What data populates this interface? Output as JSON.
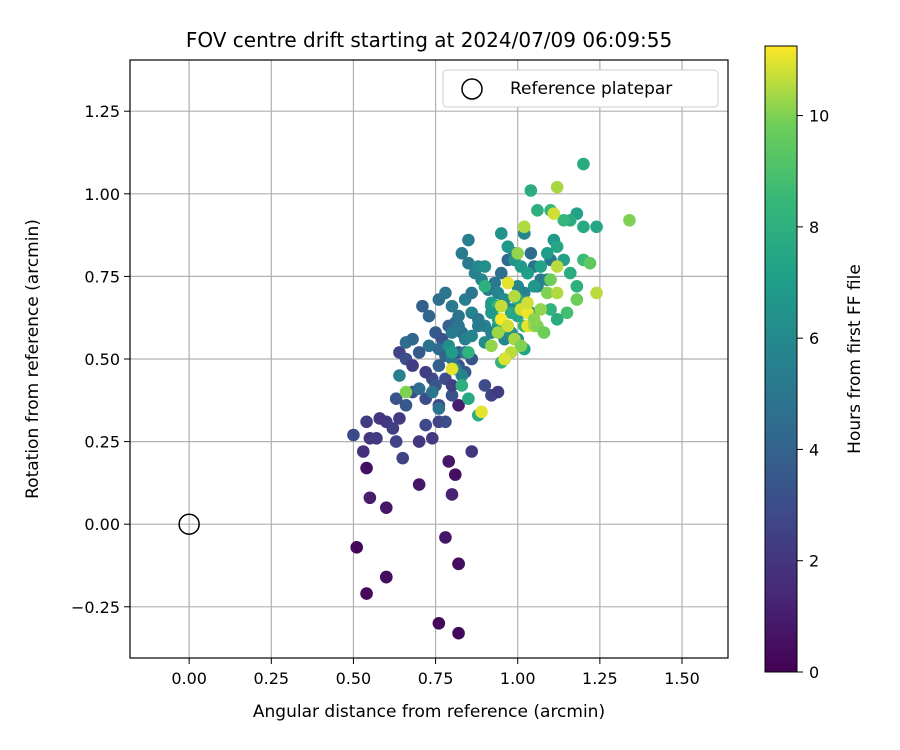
{
  "chart_data": {
    "type": "scatter",
    "title": "FOV centre drift starting at 2024/07/09 06:09:55",
    "xlabel": "Angular distance from reference (arcmin)",
    "ylabel": "Rotation from reference (arcmin)",
    "xlim": [
      -0.18,
      1.64
    ],
    "ylim": [
      -0.405,
      1.405
    ],
    "xticks": [
      0.0,
      0.25,
      0.5,
      0.75,
      1.0,
      1.25,
      1.5
    ],
    "xtick_labels": [
      "0.00",
      "0.25",
      "0.50",
      "0.75",
      "1.00",
      "1.25",
      "1.50"
    ],
    "yticks": [
      -0.25,
      0.0,
      0.25,
      0.5,
      0.75,
      1.0,
      1.25
    ],
    "ytick_labels": [
      "−0.25",
      "0.00",
      "0.25",
      "0.50",
      "0.75",
      "1.00",
      "1.25"
    ],
    "grid": true,
    "colormap": "viridis",
    "colorbar": {
      "label": "Hours from first FF file",
      "range": [
        0,
        11.25
      ],
      "ticks": [
        0,
        2,
        4,
        6,
        8,
        10
      ],
      "tick_labels": [
        "0",
        "2",
        "4",
        "6",
        "8",
        "10"
      ]
    },
    "reference_point": {
      "x": 0.0,
      "y": 0.0
    },
    "legend": {
      "position": "top-right",
      "entries": [
        "Reference platepar"
      ]
    },
    "points": [
      [
        0.51,
        -0.07,
        0.2
      ],
      [
        0.54,
        -0.21,
        0.3
      ],
      [
        0.6,
        -0.16,
        0.3
      ],
      [
        0.6,
        -0.16,
        0.5
      ],
      [
        0.76,
        -0.3,
        0.2
      ],
      [
        0.82,
        -0.33,
        0.3
      ],
      [
        0.82,
        -0.12,
        0.3
      ],
      [
        0.82,
        -0.12,
        0.5
      ],
      [
        0.78,
        -0.04,
        0.8
      ],
      [
        0.55,
        0.08,
        1.0
      ],
      [
        0.6,
        0.05,
        0.8
      ],
      [
        0.7,
        0.12,
        0.8
      ],
      [
        0.54,
        0.17,
        0.5
      ],
      [
        0.79,
        0.19,
        0.8
      ],
      [
        0.81,
        0.15,
        0.5
      ],
      [
        0.8,
        0.09,
        1.2
      ],
      [
        0.82,
        0.36,
        1.0
      ],
      [
        0.53,
        0.22,
        1.8
      ],
      [
        0.55,
        0.26,
        2.0
      ],
      [
        0.57,
        0.26,
        2.2
      ],
      [
        0.5,
        0.27,
        2.8
      ],
      [
        0.54,
        0.31,
        2.3
      ],
      [
        0.58,
        0.32,
        2.0
      ],
      [
        0.6,
        0.31,
        2.1
      ],
      [
        0.62,
        0.29,
        2.4
      ],
      [
        0.64,
        0.32,
        2.2
      ],
      [
        0.63,
        0.25,
        2.6
      ],
      [
        0.65,
        0.2,
        2.5
      ],
      [
        0.7,
        0.25,
        2.0
      ],
      [
        0.72,
        0.3,
        2.8
      ],
      [
        0.74,
        0.26,
        2.2
      ],
      [
        0.76,
        0.31,
        2.6
      ],
      [
        0.78,
        0.31,
        3.0
      ],
      [
        0.63,
        0.38,
        3.3
      ],
      [
        0.66,
        0.36,
        3.5
      ],
      [
        0.68,
        0.4,
        3.1
      ],
      [
        0.72,
        0.38,
        3.0
      ],
      [
        0.74,
        0.44,
        2.9
      ],
      [
        0.76,
        0.36,
        2.8
      ],
      [
        0.8,
        0.39,
        3.2
      ],
      [
        0.86,
        0.22,
        2.0
      ],
      [
        0.9,
        0.42,
        3.0
      ],
      [
        0.92,
        0.39,
        2.5
      ],
      [
        0.94,
        0.4,
        2.3
      ],
      [
        0.64,
        0.52,
        2.6
      ],
      [
        0.66,
        0.5,
        3.1
      ],
      [
        0.68,
        0.48,
        2.3
      ],
      [
        0.7,
        0.52,
        3.6
      ],
      [
        0.72,
        0.46,
        2.4
      ],
      [
        0.75,
        0.42,
        3.4
      ],
      [
        0.76,
        0.48,
        3.8
      ],
      [
        0.78,
        0.44,
        3.0
      ],
      [
        0.8,
        0.42,
        2.4
      ],
      [
        0.82,
        0.48,
        3.5
      ],
      [
        0.84,
        0.46,
        3.6
      ],
      [
        0.86,
        0.5,
        3.3
      ],
      [
        0.71,
        0.66,
        3.8
      ],
      [
        0.73,
        0.63,
        4.1
      ],
      [
        0.75,
        0.58,
        3.6
      ],
      [
        0.77,
        0.56,
        3.3
      ],
      [
        0.79,
        0.6,
        3.9
      ],
      [
        0.81,
        0.61,
        4.3
      ],
      [
        0.83,
        0.58,
        4.6
      ],
      [
        0.66,
        0.55,
        4.5
      ],
      [
        0.68,
        0.56,
        4.2
      ],
      [
        0.73,
        0.54,
        4.8
      ],
      [
        0.76,
        0.53,
        4.4
      ],
      [
        0.78,
        0.51,
        4.0
      ],
      [
        0.8,
        0.5,
        4.9
      ],
      [
        0.82,
        0.52,
        3.4
      ],
      [
        0.84,
        0.52,
        5.0
      ],
      [
        0.64,
        0.45,
        5.5
      ],
      [
        0.7,
        0.41,
        4.5
      ],
      [
        0.74,
        0.4,
        5.0
      ],
      [
        0.76,
        0.35,
        4.8
      ],
      [
        0.76,
        0.68,
        4.6
      ],
      [
        0.78,
        0.7,
        5.0
      ],
      [
        0.8,
        0.66,
        5.2
      ],
      [
        0.82,
        0.63,
        4.8
      ],
      [
        0.84,
        0.68,
        5.4
      ],
      [
        0.86,
        0.7,
        5.0
      ],
      [
        0.85,
        0.79,
        5.2
      ],
      [
        0.87,
        0.76,
        5.6
      ],
      [
        0.89,
        0.74,
        5.8
      ],
      [
        0.91,
        0.71,
        5.3
      ],
      [
        0.93,
        0.73,
        5.1
      ],
      [
        0.95,
        0.76,
        4.6
      ],
      [
        0.97,
        0.8,
        4.2
      ],
      [
        0.99,
        0.82,
        5.0
      ],
      [
        1.02,
        0.88,
        5.8
      ],
      [
        1.03,
        0.76,
        4.4
      ],
      [
        1.05,
        0.78,
        4.8
      ],
      [
        1.07,
        0.74,
        5.2
      ],
      [
        1.04,
        0.82,
        4.5
      ],
      [
        1.06,
        0.72,
        5.5
      ],
      [
        1.1,
        0.8,
        5.0
      ],
      [
        1.09,
        0.74,
        5.6
      ],
      [
        0.83,
        0.82,
        5.3
      ],
      [
        0.85,
        0.86,
        5.4
      ],
      [
        0.88,
        0.78,
        5.9
      ],
      [
        0.9,
        0.78,
        6.3
      ],
      [
        0.86,
        0.64,
        5.7
      ],
      [
        0.88,
        0.62,
        5.2
      ],
      [
        0.9,
        0.6,
        5.6
      ],
      [
        0.92,
        0.66,
        6.1
      ],
      [
        0.94,
        0.7,
        5.8
      ],
      [
        0.96,
        0.68,
        6.2
      ],
      [
        0.98,
        0.65,
        5.9
      ],
      [
        1.0,
        0.72,
        6.0
      ],
      [
        1.02,
        0.7,
        5.6
      ],
      [
        0.84,
        0.56,
        5.5
      ],
      [
        0.86,
        0.57,
        5.8
      ],
      [
        0.88,
        0.6,
        5.2
      ],
      [
        0.9,
        0.55,
        6.1
      ],
      [
        0.92,
        0.58,
        5.7
      ],
      [
        0.94,
        0.6,
        6.3
      ],
      [
        0.96,
        0.56,
        5.9
      ],
      [
        0.98,
        0.58,
        6.4
      ],
      [
        1.0,
        0.56,
        6.2
      ],
      [
        1.02,
        0.53,
        7.3
      ],
      [
        0.8,
        0.58,
        5.2
      ],
      [
        0.82,
        0.6,
        5.0
      ],
      [
        0.79,
        0.54,
        6.3
      ],
      [
        0.81,
        0.47,
        6.0
      ],
      [
        0.83,
        0.45,
        5.8
      ],
      [
        0.95,
        0.88,
        6.5
      ],
      [
        0.97,
        0.84,
        6.8
      ],
      [
        0.99,
        0.8,
        6.6
      ],
      [
        1.01,
        0.78,
        6.9
      ],
      [
        1.03,
        0.76,
        7.1
      ],
      [
        1.05,
        0.72,
        6.7
      ],
      [
        1.07,
        0.78,
        7.3
      ],
      [
        1.09,
        0.82,
        7.0
      ],
      [
        1.11,
        0.86,
        6.8
      ],
      [
        1.12,
        0.84,
        7.5
      ],
      [
        1.14,
        0.8,
        7.2
      ],
      [
        1.16,
        0.76,
        7.8
      ],
      [
        1.18,
        0.72,
        8.0
      ],
      [
        1.2,
        0.8,
        8.6
      ],
      [
        1.22,
        0.79,
        9.5
      ],
      [
        1.24,
        0.9,
        7.5
      ],
      [
        1.18,
        0.94,
        7.2
      ],
      [
        1.16,
        0.92,
        7.8
      ],
      [
        1.2,
        0.9,
        7.6
      ],
      [
        1.14,
        0.92,
        8.3
      ],
      [
        1.1,
        0.95,
        8.4
      ],
      [
        1.06,
        0.95,
        8.0
      ],
      [
        1.04,
        1.01,
        7.9
      ],
      [
        1.2,
        1.09,
        7.7
      ],
      [
        1.18,
        0.68,
        9.8
      ],
      [
        1.15,
        0.64,
        8.8
      ],
      [
        1.12,
        0.62,
        7.8
      ],
      [
        1.1,
        0.65,
        8.2
      ],
      [
        0.92,
        0.67,
        7.0
      ],
      [
        0.94,
        0.62,
        7.4
      ],
      [
        0.96,
        0.6,
        8.0
      ],
      [
        0.98,
        0.64,
        7.6
      ],
      [
        1.0,
        0.68,
        7.8
      ],
      [
        1.02,
        0.6,
        8.2
      ],
      [
        1.04,
        0.64,
        7.2
      ],
      [
        0.9,
        0.72,
        8.0
      ],
      [
        0.94,
        0.66,
        8.5
      ],
      [
        0.96,
        0.5,
        7.0
      ],
      [
        0.95,
        0.49,
        8.2
      ],
      [
        0.88,
        0.33,
        7.8
      ],
      [
        0.85,
        0.38,
        7.6
      ],
      [
        0.83,
        0.42,
        8.0
      ],
      [
        0.8,
        0.52,
        7.0
      ],
      [
        0.85,
        0.52,
        8.2
      ],
      [
        0.92,
        0.64,
        6.9
      ],
      [
        1.0,
        0.63,
        7.5
      ],
      [
        1.12,
        1.02,
        10.4
      ],
      [
        1.11,
        0.94,
        10.8
      ],
      [
        1.02,
        0.9,
        10.5
      ],
      [
        1.0,
        0.82,
        10.2
      ],
      [
        1.34,
        0.92,
        10.0
      ],
      [
        1.24,
        0.7,
        10.6
      ],
      [
        0.97,
        0.73,
        11.0
      ],
      [
        0.99,
        0.69,
        10.5
      ],
      [
        1.01,
        0.65,
        10.8
      ],
      [
        1.03,
        0.6,
        11.0
      ],
      [
        1.05,
        0.6,
        10.4
      ],
      [
        1.07,
        0.65,
        10.2
      ],
      [
        1.09,
        0.7,
        10.0
      ],
      [
        1.1,
        0.74,
        9.8
      ],
      [
        1.12,
        0.78,
        10.6
      ],
      [
        0.95,
        0.62,
        11.2
      ],
      [
        0.97,
        0.6,
        10.8
      ],
      [
        0.99,
        0.56,
        10.4
      ],
      [
        1.01,
        0.54,
        10.0
      ],
      [
        1.03,
        0.64,
        11.1
      ],
      [
        0.98,
        0.52,
        10.6
      ],
      [
        0.96,
        0.5,
        10.9
      ],
      [
        0.94,
        0.58,
        10.3
      ],
      [
        0.92,
        0.54,
        10.2
      ],
      [
        0.95,
        0.66,
        10.7
      ],
      [
        1.03,
        0.67,
        10.8
      ],
      [
        1.06,
        0.6,
        10.0
      ],
      [
        1.08,
        0.58,
        9.8
      ],
      [
        0.89,
        0.34,
        11.0
      ],
      [
        0.8,
        0.47,
        11.0
      ],
      [
        0.66,
        0.4,
        10.0
      ],
      [
        1.05,
        0.62,
        10.1
      ],
      [
        1.12,
        0.7,
        10.5
      ]
    ]
  }
}
